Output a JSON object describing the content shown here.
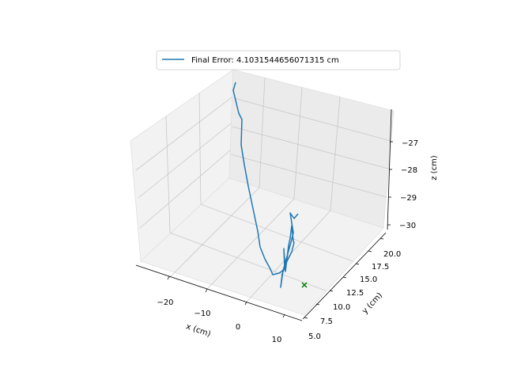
{
  "chart_data": {
    "type": "line3d",
    "legend": {
      "placement": "top-center",
      "entries": [
        {
          "label": "Final Error: 4.1031544656071315 cm",
          "color": "#1f77b4"
        }
      ]
    },
    "axes": {
      "x": {
        "label": "x (cm)",
        "ticks": [
          "−20",
          "−10",
          "0",
          "10"
        ]
      },
      "y": {
        "label": "y (cm)",
        "ticks": [
          "5.0",
          "7.5",
          "10.0",
          "12.5",
          "15.0",
          "17.5",
          "20.0"
        ]
      },
      "z": {
        "label": "z (cm)",
        "ticks": [
          "−30",
          "−29",
          "−28",
          "−27"
        ]
      },
      "grid": true
    },
    "series": [
      {
        "label": "Final Error: 4.1031544656071315 cm",
        "color": "#1f77b4",
        "marker": "none"
      }
    ],
    "target_marker": {
      "symbol": "x",
      "color": "#008000"
    }
  }
}
